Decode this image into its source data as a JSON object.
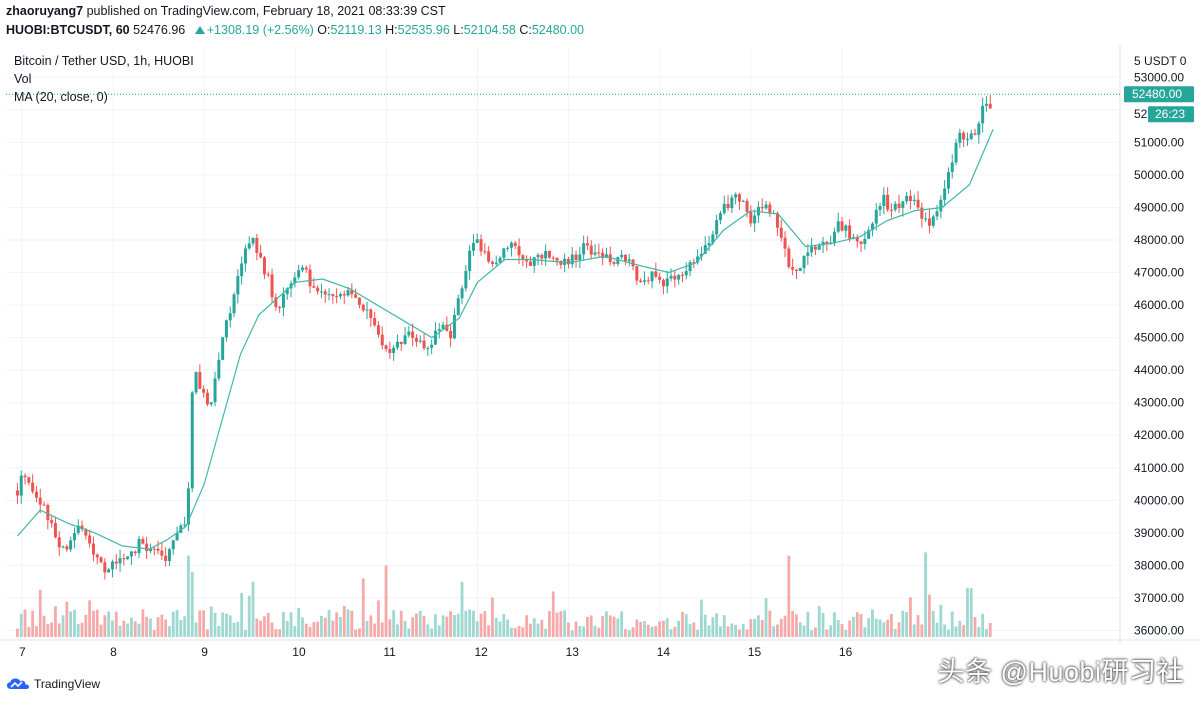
{
  "header": {
    "publish_line_user": "zhaoruyang7",
    "publish_line_rest": "published on TradingView.com, February 18, 2021 08:33:39 CST",
    "symbol": "HUOBI:BTCUSDT, 60",
    "last": "52476.96",
    "change": "+1308.19 (+2.56%)",
    "o_label": "O:",
    "o": "52119.13",
    "h_label": "H:",
    "h": "52535.96",
    "l_label": "L:",
    "l": "52104.58",
    "c_label": "C:",
    "c": "52480.00"
  },
  "legend": {
    "title": "Bitcoin / Tether USD, 1h, HUOBI",
    "vol": "Vol",
    "ma": "MA (20, close, 0)"
  },
  "price_axis": {
    "unit_label": "5 USDT 0",
    "last_price_tag": "52480.00",
    "countdown_tag": "26:23"
  },
  "footer": {
    "brand": "TradingView",
    "watermark": "头条 @Huobi研习社"
  },
  "colors": {
    "up": "#26a69a",
    "down": "#ef5350",
    "ma": "#3fb8a8",
    "up_vol": "#9ed8d1",
    "down_vol": "#f5aaa9",
    "grid": "#f0f3fa"
  },
  "chart_data": {
    "type": "candlestick",
    "title": "Bitcoin / Tether USD, 1h, HUOBI",
    "ylim": [
      35800,
      53900
    ],
    "y_ticks": [
      53000,
      52000,
      51000,
      50000,
      49000,
      48000,
      47000,
      46000,
      45000,
      44000,
      43000,
      42000,
      41000,
      40000,
      39000,
      38000,
      37000,
      36000
    ],
    "x_ticks": [
      "7",
      "8",
      "9",
      "10",
      "11",
      "12",
      "13",
      "14",
      "15",
      "16"
    ],
    "x_range": [
      6.95,
      17.4
    ],
    "close_path": [
      [
        6.95,
        40300
      ],
      [
        7.02,
        40900
      ],
      [
        7.15,
        40200
      ],
      [
        7.3,
        39400
      ],
      [
        7.4,
        38700
      ],
      [
        7.5,
        38500
      ],
      [
        7.6,
        39200
      ],
      [
        7.72,
        38800
      ],
      [
        7.85,
        38200
      ],
      [
        7.95,
        37800
      ],
      [
        8.05,
        38200
      ],
      [
        8.15,
        38100
      ],
      [
        8.3,
        38800
      ],
      [
        8.45,
        38400
      ],
      [
        8.6,
        38200
      ],
      [
        8.7,
        39000
      ],
      [
        8.78,
        39200
      ],
      [
        8.82,
        39600
      ],
      [
        8.85,
        42800
      ],
      [
        8.9,
        44200
      ],
      [
        8.95,
        43500
      ],
      [
        9.05,
        42800
      ],
      [
        9.15,
        44200
      ],
      [
        9.25,
        45600
      ],
      [
        9.32,
        46200
      ],
      [
        9.4,
        47200
      ],
      [
        9.47,
        47800
      ],
      [
        9.52,
        48000
      ],
      [
        9.6,
        47500
      ],
      [
        9.7,
        46800
      ],
      [
        9.75,
        46200
      ],
      [
        9.82,
        45800
      ],
      [
        9.87,
        46400
      ],
      [
        9.95,
        46800
      ],
      [
        10.05,
        47200
      ],
      [
        10.15,
        46800
      ],
      [
        10.25,
        46500
      ],
      [
        10.35,
        46200
      ],
      [
        10.45,
        46300
      ],
      [
        10.6,
        46600
      ],
      [
        10.75,
        45800
      ],
      [
        10.85,
        45500
      ],
      [
        10.95,
        44900
      ],
      [
        11.05,
        44600
      ],
      [
        11.15,
        44900
      ],
      [
        11.3,
        45100
      ],
      [
        11.42,
        44500
      ],
      [
        11.5,
        44900
      ],
      [
        11.6,
        45300
      ],
      [
        11.7,
        44900
      ],
      [
        11.8,
        46300
      ],
      [
        11.85,
        46800
      ],
      [
        11.9,
        47600
      ],
      [
        12.0,
        48000
      ],
      [
        12.05,
        47700
      ],
      [
        12.15,
        47200
      ],
      [
        12.25,
        47600
      ],
      [
        12.35,
        48000
      ],
      [
        12.5,
        47500
      ],
      [
        12.6,
        47300
      ],
      [
        12.75,
        47600
      ],
      [
        12.9,
        47200
      ],
      [
        13.05,
        47500
      ],
      [
        13.2,
        47800
      ],
      [
        13.35,
        47600
      ],
      [
        13.5,
        47300
      ],
      [
        13.65,
        47400
      ],
      [
        13.75,
        46800
      ],
      [
        13.85,
        46600
      ],
      [
        13.95,
        47000
      ],
      [
        14.05,
        46700
      ],
      [
        14.15,
        46900
      ],
      [
        14.3,
        47200
      ],
      [
        14.4,
        47400
      ],
      [
        14.5,
        47800
      ],
      [
        14.6,
        48400
      ],
      [
        14.7,
        49000
      ],
      [
        14.8,
        49300
      ],
      [
        14.9,
        49200
      ],
      [
        15.0,
        48700
      ],
      [
        15.1,
        48900
      ],
      [
        15.2,
        48900
      ],
      [
        15.3,
        48400
      ],
      [
        15.38,
        47700
      ],
      [
        15.42,
        47000
      ],
      [
        15.48,
        46900
      ],
      [
        15.55,
        47200
      ],
      [
        15.65,
        47600
      ],
      [
        15.75,
        47800
      ],
      [
        15.85,
        48000
      ],
      [
        15.95,
        48400
      ],
      [
        16.05,
        48300
      ],
      [
        16.15,
        47800
      ],
      [
        16.25,
        48000
      ],
      [
        16.35,
        48700
      ],
      [
        16.45,
        49300
      ],
      [
        16.55,
        48900
      ],
      [
        16.65,
        49100
      ],
      [
        16.75,
        49300
      ],
      [
        16.85,
        48900
      ],
      [
        16.92,
        48500
      ],
      [
        17.0,
        48700
      ],
      [
        17.08,
        49300
      ],
      [
        17.15,
        49800
      ],
      [
        17.22,
        50600
      ],
      [
        17.3,
        51400
      ],
      [
        17.38,
        51100
      ],
      [
        17.45,
        51300
      ],
      [
        17.52,
        51700
      ],
      [
        17.58,
        52400
      ],
      [
        17.62,
        52100
      ],
      [
        17.66,
        52480
      ]
    ],
    "ma_path": [
      [
        6.95,
        38900
      ],
      [
        7.2,
        39700
      ],
      [
        7.5,
        39300
      ],
      [
        7.8,
        39000
      ],
      [
        8.1,
        38600
      ],
      [
        8.4,
        38500
      ],
      [
        8.6,
        38800
      ],
      [
        8.8,
        39200
      ],
      [
        9.0,
        40500
      ],
      [
        9.2,
        42500
      ],
      [
        9.4,
        44500
      ],
      [
        9.6,
        45700
      ],
      [
        9.8,
        46200
      ],
      [
        10.0,
        46700
      ],
      [
        10.3,
        46800
      ],
      [
        10.6,
        46500
      ],
      [
        10.9,
        46000
      ],
      [
        11.2,
        45500
      ],
      [
        11.5,
        45000
      ],
      [
        11.8,
        45600
      ],
      [
        12.0,
        46700
      ],
      [
        12.3,
        47400
      ],
      [
        12.6,
        47400
      ],
      [
        13.0,
        47300
      ],
      [
        13.4,
        47500
      ],
      [
        13.8,
        47200
      ],
      [
        14.1,
        47000
      ],
      [
        14.4,
        47300
      ],
      [
        14.7,
        48300
      ],
      [
        15.0,
        48900
      ],
      [
        15.3,
        48800
      ],
      [
        15.6,
        47800
      ],
      [
        15.9,
        47900
      ],
      [
        16.2,
        48100
      ],
      [
        16.5,
        48600
      ],
      [
        16.8,
        48900
      ],
      [
        17.1,
        49000
      ],
      [
        17.4,
        49700
      ],
      [
        17.66,
        51400
      ]
    ],
    "volume_spikes": [
      [
        8.82,
        38300
      ],
      [
        8.87,
        37800
      ],
      [
        9.55,
        37500
      ],
      [
        10.75,
        37600
      ],
      [
        11.0,
        38000
      ],
      [
        11.85,
        37500
      ],
      [
        15.43,
        38300
      ],
      [
        16.9,
        38400
      ],
      [
        17.4,
        37300
      ]
    ]
  }
}
